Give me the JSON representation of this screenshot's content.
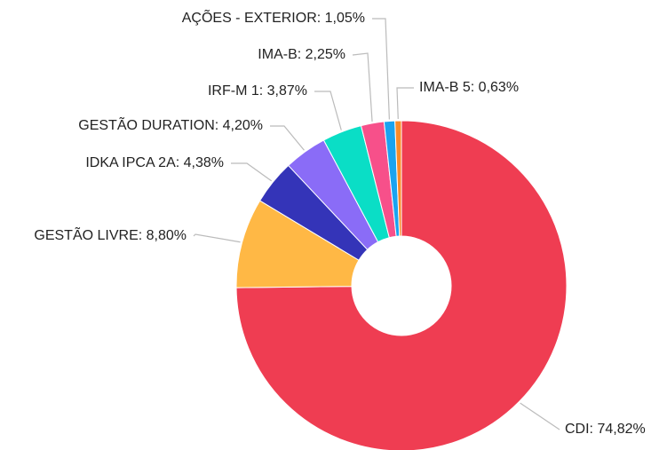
{
  "chart_data": {
    "type": "pie",
    "donut": true,
    "values": [
      74.82,
      8.8,
      4.38,
      4.2,
      3.87,
      2.25,
      1.05,
      0.63
    ],
    "value_labels": [
      "CDI: 74,82%",
      "GESTÃO LIVRE: 8,80%",
      "IDKA IPCA 2A: 4,38%",
      "GESTÃO DURATION: 4,20%",
      "IRF-M 1: 3,87%",
      "IMA-B: 2,25%",
      "AÇÕES - EXTERIOR: 1,05%",
      "IMA-B 5: 0,63%"
    ],
    "colors": [
      "#ef3d52",
      "#ffb845",
      "#3434b8",
      "#8a6cf7",
      "#0adec6",
      "#f7508a",
      "#1aa3f0",
      "#f98b2a"
    ]
  }
}
